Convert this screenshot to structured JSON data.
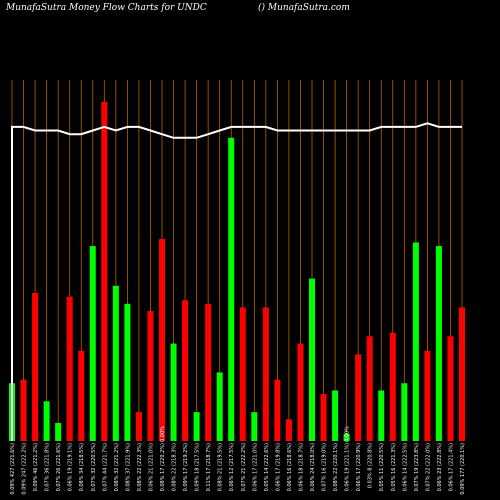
{
  "header": {
    "title": "MunafaSutra  Money Flow  Charts for UNDC",
    "site": "() MunafaSutra.com"
  },
  "colors": {
    "background": "#000000",
    "grid": "#b8600b",
    "up": "#00ff00",
    "down": "#ff0000",
    "line": "#ffffff"
  },
  "chart_data": {
    "type": "bar",
    "grid": true,
    "ylim": [
      0,
      100
    ],
    "line_ylim": [
      0,
      100
    ],
    "categories": [
      "0.09% 427 (221.6%)",
      "0.09% 247 (222.2%)",
      "0.09% 46 (221.2%)",
      "0.07% 36 (221.8%)",
      "0.07% 26 (221.6%)",
      "0.06% 19 (219.1%)",
      "0.08% 34 (218.5%)",
      "0.07% 32 (220.5%)",
      "0.07% 44 (221.7%)",
      "0.08% 32 (221.2%)",
      "0.08% 37 (221.9%)",
      "0.08% 22 (222.3%)",
      "0.06% 21 (221.0%)",
      "0.08% 17 (220.2%)",
      "0.08% 22 (218.3%)",
      "0.09% 17 (219.2%)",
      "0.09% 18 (217.5%)",
      "0.11% 17 (218.7%)",
      "0.08% 21 (219.5%)",
      "0.06% 12 (217.5%)",
      "0.07% 21 (222.2%)",
      "0.06% 17 (221.0%)",
      "0.05% 14 (222.6%)",
      "0.06% 17 (219.8%)",
      "0.06% 16 (218.6%)",
      "0.06% 18 (218.7%)",
      "0.06% 24 (218.0%)",
      "0.07% 16 (219.0%)",
      "0.08% 22 (220.1%)",
      "0.06% 19 (221.1%)",
      "0.06% 17 (220.9%)",
      "0.03% 8 (220.8%)",
      "0.05% 11 (220.5%)",
      "0.05% 16 (221.3%)",
      "0.06% 14 (222.5%)",
      "0.07% 19 (223.8%)",
      "0.07% 22 (222.0%)",
      "0.06% 23 (222.8%)",
      "0.06% 17 (221.4%)",
      "0.09% 177 (220.1%)"
    ],
    "series": [
      {
        "values": [
          16,
          17,
          41,
          11,
          5,
          40,
          25,
          54,
          94,
          43,
          38,
          8,
          36,
          56,
          27,
          39,
          8,
          38,
          19,
          84,
          37,
          8,
          37,
          17,
          6,
          27,
          45,
          13,
          14,
          2,
          24,
          29,
          14,
          30,
          16,
          55,
          25,
          54,
          29,
          37
        ]
      },
      {
        "values": [
          87,
          87,
          86,
          86,
          86,
          85,
          85,
          86,
          87,
          86,
          87,
          87,
          86,
          85,
          84,
          84,
          84,
          85,
          86,
          87,
          87,
          87,
          87,
          86,
          86,
          86,
          86,
          86,
          86,
          86,
          86,
          86,
          87,
          87,
          87,
          87,
          88,
          87,
          87,
          87
        ]
      }
    ],
    "bar_colors": [
      "green",
      "red",
      "red",
      "green",
      "green",
      "red",
      "red",
      "green",
      "red",
      "green",
      "green",
      "red",
      "red",
      "red",
      "green",
      "red",
      "green",
      "red",
      "green",
      "green",
      "red",
      "green",
      "red",
      "red",
      "red",
      "red",
      "green",
      "red",
      "green",
      "green",
      "red",
      "red",
      "green",
      "red",
      "green",
      "green",
      "red",
      "green",
      "red",
      "red"
    ],
    "extra_labels": [
      "0.00%",
      "0.00%"
    ]
  }
}
